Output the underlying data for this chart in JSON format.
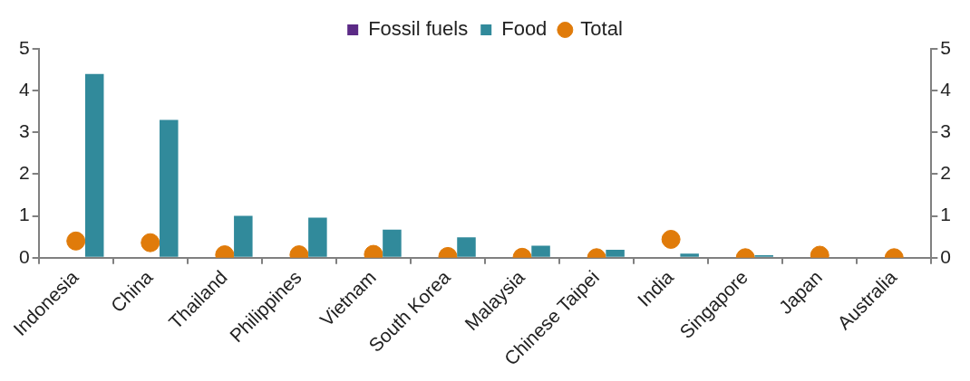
{
  "chart_data": {
    "type": "bar",
    "categories": [
      "Indonesia",
      "China",
      "Thailand",
      "Philippines",
      "Vietnam",
      "South Korea",
      "Malaysia",
      "Chinese Taipei",
      "India",
      "Singapore",
      "Japan",
      "Australia"
    ],
    "series": [
      {
        "name": "Fossil fuels",
        "color": "#5b2a86",
        "values": [
          null,
          null,
          null,
          null,
          null,
          null,
          null,
          null,
          null,
          null,
          null,
          null
        ]
      },
      {
        "name": "Food",
        "color": "#318a9b",
        "values": [
          4.4,
          3.3,
          1.0,
          0.96,
          0.67,
          0.49,
          0.29,
          0.19,
          0.1,
          0.06,
          0,
          0
        ]
      },
      {
        "name": "Total",
        "type": "scatter",
        "color": "#e07b0a",
        "values": [
          0.4,
          0.36,
          0.07,
          0.07,
          0.08,
          0.03,
          0.01,
          0,
          0.44,
          0,
          0.06,
          0
        ]
      }
    ],
    "ylim": [
      0,
      5
    ],
    "yticks": [
      0,
      1,
      2,
      3,
      4,
      5
    ],
    "y2lim": [
      0,
      5
    ],
    "y2ticks": [
      0,
      1,
      2,
      3,
      4,
      5
    ],
    "grid": false,
    "legend": "top",
    "marker": "circle"
  }
}
